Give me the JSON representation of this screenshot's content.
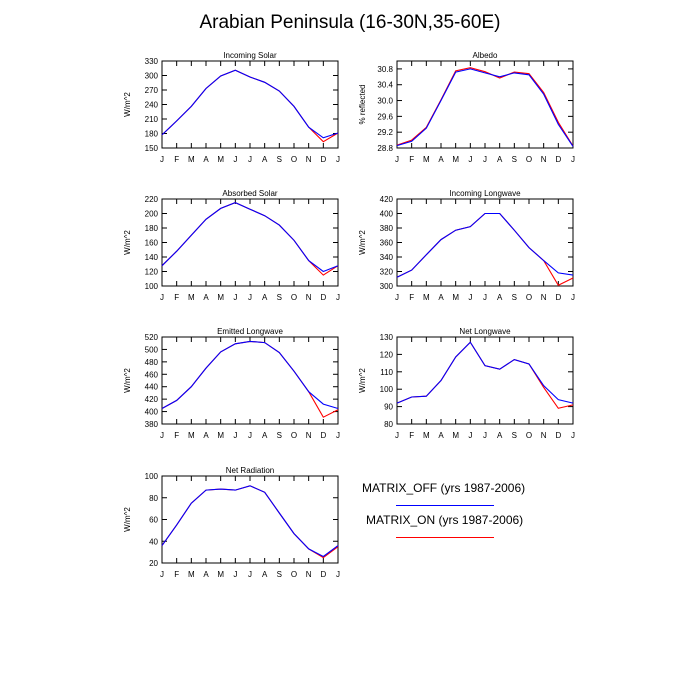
{
  "figure": {
    "title": "Arabian Peninsula (16-30N,35-60E)"
  },
  "colors": {
    "matrix_off": "#0000ff",
    "matrix_on": "#ff0000",
    "axis": "#000000"
  },
  "legend": [
    {
      "label": "MATRIX_OFF (yrs 1987-2006)",
      "color": "#0000ff"
    },
    {
      "label": "MATRIX_ON (yrs 1987-2006)",
      "color": "#ff0000"
    }
  ],
  "chart_data": [
    {
      "type": "line",
      "title": "Incoming Solar",
      "ylabel": "W/m^2",
      "ylim": [
        150,
        330
      ],
      "yticks": [
        150,
        180,
        210,
        240,
        270,
        300,
        330
      ],
      "ytick_labels": [
        "150",
        "180",
        "210",
        "240",
        "270",
        "300",
        "330"
      ],
      "categories": [
        "J",
        "F",
        "M",
        "A",
        "M",
        "J",
        "J",
        "A",
        "S",
        "O",
        "N",
        "D",
        "J"
      ],
      "series": [
        {
          "name": "MATRIX_OFF (yrs 1987-2006)",
          "values": [
            177,
            206,
            236,
            273,
            299,
            311,
            297,
            286,
            268,
            236,
            193,
            171,
            181
          ]
        },
        {
          "name": "MATRIX_ON (yrs 1987-2006)",
          "values": [
            177,
            206,
            236,
            273,
            299,
            311,
            297,
            286,
            268,
            236,
            193,
            163,
            181
          ]
        }
      ]
    },
    {
      "type": "line",
      "title": "Albedo",
      "ylabel": "% reflected",
      "ylim": [
        28.8,
        31.0
      ],
      "yticks": [
        28.8,
        29.2,
        29.6,
        30.0,
        30.4,
        30.8
      ],
      "ytick_labels": [
        "28.8",
        "29.2",
        "29.6",
        "30.0",
        "30.4",
        "30.8"
      ],
      "categories": [
        "J",
        "F",
        "M",
        "A",
        "M",
        "J",
        "J",
        "A",
        "S",
        "O",
        "N",
        "D",
        "J"
      ],
      "series": [
        {
          "name": "MATRIX_OFF (yrs 1987-2006)",
          "values": [
            28.86,
            28.97,
            29.3,
            30.0,
            30.72,
            30.8,
            30.7,
            30.6,
            30.7,
            30.65,
            30.16,
            29.4,
            28.84
          ]
        },
        {
          "name": "MATRIX_ON (yrs 1987-2006)",
          "values": [
            28.87,
            29.0,
            29.32,
            30.02,
            30.75,
            30.83,
            30.73,
            30.57,
            30.72,
            30.68,
            30.2,
            29.45,
            28.85
          ]
        }
      ]
    },
    {
      "type": "line",
      "title": "Absorbed Solar",
      "ylabel": "W/m^2",
      "ylim": [
        100,
        220
      ],
      "yticks": [
        100,
        120,
        140,
        160,
        180,
        200,
        220
      ],
      "ytick_labels": [
        "100",
        "120",
        "140",
        "160",
        "180",
        "200",
        "220"
      ],
      "categories": [
        "J",
        "F",
        "M",
        "A",
        "M",
        "J",
        "J",
        "A",
        "S",
        "O",
        "N",
        "D",
        "J"
      ],
      "series": [
        {
          "name": "MATRIX_OFF (yrs 1987-2006)",
          "values": [
            128,
            148,
            170,
            192,
            207,
            215,
            206,
            197,
            184,
            163,
            135,
            120,
            128
          ]
        },
        {
          "name": "MATRIX_ON (yrs 1987-2006)",
          "values": [
            128,
            148,
            170,
            192,
            207,
            215,
            206,
            197,
            184,
            163,
            135,
            115,
            128
          ]
        }
      ]
    },
    {
      "type": "line",
      "title": "Incoming Longwave",
      "ylabel": "W/m^2",
      "ylim": [
        300,
        420
      ],
      "yticks": [
        300,
        320,
        340,
        360,
        380,
        400,
        420
      ],
      "ytick_labels": [
        "300",
        "320",
        "340",
        "360",
        "380",
        "400",
        "420"
      ],
      "categories": [
        "J",
        "F",
        "M",
        "A",
        "M",
        "J",
        "J",
        "A",
        "S",
        "O",
        "N",
        "D",
        "J"
      ],
      "series": [
        {
          "name": "MATRIX_OFF (yrs 1987-2006)",
          "values": [
            312,
            322,
            343,
            364,
            377,
            382,
            400,
            400,
            377,
            353,
            335,
            318,
            315
          ]
        },
        {
          "name": "MATRIX_ON (yrs 1987-2006)",
          "values": [
            312,
            322,
            343,
            364,
            377,
            382,
            400,
            400,
            377,
            353,
            335,
            301,
            311
          ]
        }
      ]
    },
    {
      "type": "line",
      "title": "Emitted Longwave",
      "ylabel": "W/m^2",
      "ylim": [
        380,
        520
      ],
      "yticks": [
        380,
        400,
        420,
        440,
        460,
        480,
        500,
        520
      ],
      "ytick_labels": [
        "380",
        "400",
        "420",
        "440",
        "460",
        "480",
        "500",
        "520"
      ],
      "categories": [
        "J",
        "F",
        "M",
        "A",
        "M",
        "J",
        "J",
        "A",
        "S",
        "O",
        "N",
        "D",
        "J"
      ],
      "series": [
        {
          "name": "MATRIX_OFF (yrs 1987-2006)",
          "values": [
            405,
            418,
            440,
            470,
            496,
            509,
            513,
            511,
            495,
            465,
            432,
            412,
            405
          ]
        },
        {
          "name": "MATRIX_ON (yrs 1987-2006)",
          "values": [
            405,
            418,
            440,
            470,
            496,
            509,
            513,
            511,
            495,
            465,
            432,
            391,
            403
          ]
        }
      ]
    },
    {
      "type": "line",
      "title": "Net Longwave",
      "ylabel": "W/m^2",
      "ylim": [
        80,
        130
      ],
      "yticks": [
        80,
        90,
        100,
        110,
        120,
        130
      ],
      "ytick_labels": [
        "80",
        "90",
        "100",
        "110",
        "120",
        "130"
      ],
      "categories": [
        "J",
        "F",
        "M",
        "A",
        "M",
        "J",
        "J",
        "A",
        "S",
        "O",
        "N",
        "D",
        "J"
      ],
      "series": [
        {
          "name": "MATRIX_OFF (yrs 1987-2006)",
          "values": [
            92,
            95.5,
            96,
            105,
            118.5,
            127,
            113.5,
            111.5,
            117,
            114.5,
            102,
            94,
            92
          ]
        },
        {
          "name": "MATRIX_ON (yrs 1987-2006)",
          "values": [
            92,
            95.5,
            96,
            105,
            118.5,
            127,
            113.5,
            111.5,
            117,
            114.5,
            101,
            89,
            91
          ]
        }
      ]
    },
    {
      "type": "line",
      "title": "Net Radiation",
      "ylabel": "W/m^2",
      "ylim": [
        20,
        100
      ],
      "yticks": [
        20,
        40,
        60,
        80,
        100
      ],
      "ytick_labels": [
        "20",
        "40",
        "60",
        "80",
        "100"
      ],
      "categories": [
        "J",
        "F",
        "M",
        "A",
        "M",
        "J",
        "J",
        "A",
        "S",
        "O",
        "N",
        "D",
        "J"
      ],
      "series": [
        {
          "name": "MATRIX_OFF (yrs 1987-2006)",
          "values": [
            36,
            55,
            75,
            87,
            88,
            87,
            91,
            85,
            66,
            47,
            33,
            26,
            36
          ]
        },
        {
          "name": "MATRIX_ON (yrs 1987-2006)",
          "values": [
            36,
            55,
            75,
            87,
            88,
            87,
            91,
            85,
            66,
            47,
            33,
            25,
            35
          ]
        }
      ]
    }
  ]
}
